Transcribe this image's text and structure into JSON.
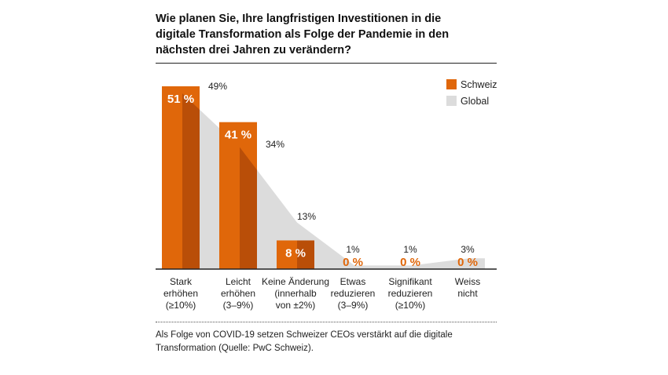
{
  "title_lines": [
    "Wie planen Sie, Ihre langfristigen Investitionen in die",
    "digitale Transformation als Folge der Pandemie in den",
    "nächsten drei Jahren zu verändern?"
  ],
  "footnote_lines": [
    "Als Folge von COVID-19 setzen Schweizer CEOs verstärkt auf die digitale",
    "Transformation (Quelle: PwC Schweiz)."
  ],
  "colors": {
    "schweiz": "#E0670A",
    "schweiz_overlap": "#B94E08",
    "global": "#DCDCDC",
    "axis": "#222222"
  },
  "chart_data": {
    "type": "bar",
    "title": "Wie planen Sie, Ihre langfristigen Investitionen in die digitale Transformation als Folge der Pandemie in den nächsten drei Jahren zu verändern?",
    "categories": [
      [
        "Stark",
        "erhöhen",
        "(≥10%)"
      ],
      [
        "Leicht",
        "erhöhen",
        "(3–9%)"
      ],
      [
        "Keine Änderung",
        "(innerhalb",
        "von ±2%)"
      ],
      [
        "Etwas",
        "reduzieren",
        "(3–9%)"
      ],
      [
        "Signifikant",
        "reduzieren",
        "(≥10%)"
      ],
      [
        "Weiss",
        "nicht"
      ]
    ],
    "series": [
      {
        "name": "Schweiz",
        "type": "bar",
        "values": [
          51,
          41,
          8,
          0,
          0,
          0
        ],
        "labels": [
          "51 %",
          "41 %",
          "8 %",
          "0 %",
          "0 %",
          "0 %"
        ]
      },
      {
        "name": "Global",
        "type": "area",
        "values": [
          49,
          34,
          13,
          1,
          1,
          3
        ],
        "labels": [
          "49%",
          "34%",
          "13%",
          "1%",
          "1%",
          "3%"
        ]
      }
    ],
    "legend": [
      "Schweiz",
      "Global"
    ],
    "legend_position": "top-right",
    "ylim": [
      0,
      55
    ],
    "xlabel": "",
    "ylabel": ""
  }
}
